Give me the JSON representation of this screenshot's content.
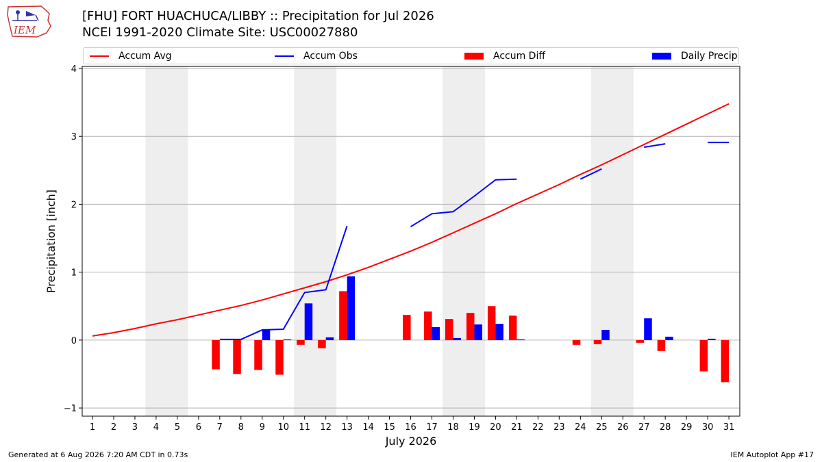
{
  "header": {
    "logo_text": "IEM",
    "title_line1": "[FHU] FORT HUACHUCA/LIBBY :: Precipitation for Jul 2026",
    "title_line2": "NCEI 1991-2020 Climate Site: USC00027880"
  },
  "footer": {
    "generated": "Generated at 6 Aug 2026 7:20 AM CDT in 0.73s",
    "app": "IEM Autoplot App #17"
  },
  "colors": {
    "accum_avg": "#ff0000",
    "accum_obs": "#0000ff",
    "accum_diff": "#ff0000",
    "daily_precip": "#0000ff",
    "weekend_shade": "#eeeeee",
    "grid": "#b0b0b0"
  },
  "chart_data": {
    "type": "bar",
    "title": "[FHU] FORT HUACHUCA/LIBBY :: Precipitation for Jul 2026",
    "subtitle": "NCEI 1991-2020 Climate Site: USC00027880",
    "xlabel": "July 2026",
    "ylabel": "Precipitation [inch]",
    "ylim": [
      -1.12,
      4.03
    ],
    "yticks": [
      -1,
      0,
      1,
      2,
      3,
      4
    ],
    "ytick_labels": [
      "−1",
      "0",
      "1",
      "2",
      "3",
      "4"
    ],
    "grid": "horizontal",
    "legend_position": "top",
    "days": [
      1,
      2,
      3,
      4,
      5,
      6,
      7,
      8,
      9,
      10,
      11,
      12,
      13,
      14,
      15,
      16,
      17,
      18,
      19,
      20,
      21,
      22,
      23,
      24,
      25,
      26,
      27,
      28,
      29,
      30,
      31
    ],
    "shaded_days": [
      [
        4,
        5
      ],
      [
        11,
        12
      ],
      [
        18,
        19
      ],
      [
        25,
        26
      ]
    ],
    "series": [
      {
        "name": "Accum Avg",
        "kind": "line",
        "values": [
          0.06,
          0.11,
          0.17,
          0.24,
          0.3,
          0.37,
          0.44,
          0.51,
          0.59,
          0.68,
          0.77,
          0.86,
          0.96,
          1.07,
          1.19,
          1.31,
          1.44,
          1.58,
          1.72,
          1.86,
          2.01,
          2.15,
          2.29,
          2.44,
          2.58,
          2.73,
          2.88,
          3.03,
          3.18,
          3.33,
          3.48
        ]
      },
      {
        "name": "Accum Obs",
        "kind": "line",
        "values": [
          null,
          null,
          null,
          null,
          null,
          null,
          0.01,
          0.01,
          0.15,
          0.16,
          0.7,
          0.74,
          1.68,
          null,
          null,
          1.67,
          1.86,
          1.89,
          2.12,
          2.36,
          2.37,
          null,
          null,
          2.37,
          2.52,
          null,
          2.84,
          2.89,
          null,
          2.91,
          2.91
        ]
      },
      {
        "name": "Accum Diff",
        "kind": "bar",
        "values": [
          null,
          null,
          null,
          null,
          null,
          null,
          -0.43,
          -0.5,
          -0.44,
          -0.51,
          -0.07,
          -0.12,
          0.72,
          null,
          null,
          0.37,
          0.42,
          0.31,
          0.4,
          0.5,
          0.36,
          null,
          null,
          -0.07,
          -0.06,
          null,
          -0.04,
          -0.16,
          null,
          -0.46,
          -0.62
        ]
      },
      {
        "name": "Daily Precip",
        "kind": "bar",
        "values": [
          null,
          null,
          null,
          null,
          null,
          null,
          0,
          0,
          0.15,
          0.01,
          0.54,
          0.04,
          0.94,
          null,
          null,
          0,
          0.19,
          0.03,
          0.23,
          0.24,
          0.01,
          null,
          null,
          0,
          0.15,
          null,
          0.32,
          0.05,
          null,
          0.02,
          0
        ]
      }
    ]
  }
}
